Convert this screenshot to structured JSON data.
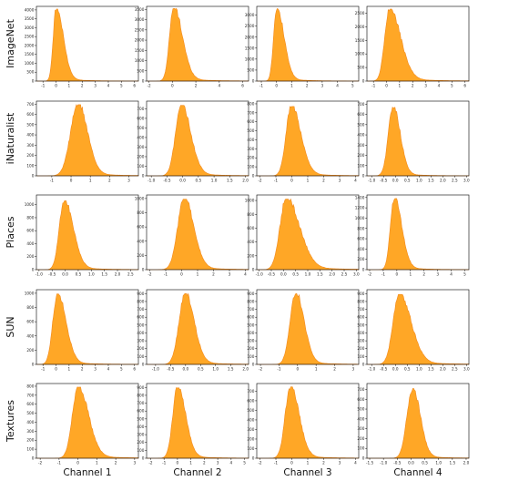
{
  "chart_data": {
    "type": "area",
    "rows": [
      "ImageNet",
      "iNaturalist",
      "Places",
      "SUN",
      "Textures"
    ],
    "columns": [
      "Channel 1",
      "Channel 2",
      "Channel 3",
      "Channel 4"
    ],
    "colors": {
      "fill": "#ffa726",
      "line": "#f28a1e"
    },
    "grid": false,
    "legend": "none",
    "panels": [
      [
        {
          "xlim": [
            -1.5,
            6.3
          ],
          "xticks": [
            -1,
            0,
            1,
            2,
            3,
            4,
            5,
            6
          ],
          "ylim": [
            0,
            4200
          ],
          "yticks": [
            0,
            500,
            1000,
            1500,
            2000,
            2500,
            3000,
            3500,
            4000
          ],
          "peak_x": 0.0,
          "peak": 4050,
          "left_sd": 0.22,
          "right_sd": 0.55
        },
        {
          "xlim": [
            -2.2,
            6.5
          ],
          "xticks": [
            -2,
            0,
            2,
            4,
            6
          ],
          "ylim": [
            0,
            3650
          ],
          "yticks": [
            0,
            500,
            1000,
            1500,
            2000,
            2500,
            3000,
            3500
          ],
          "peak_x": 0.1,
          "peak": 3550,
          "left_sd": 0.35,
          "right_sd": 0.75
        },
        {
          "xlim": [
            -1.3,
            5.4
          ],
          "xticks": [
            -1,
            0,
            1,
            2,
            3,
            4,
            5
          ],
          "ylim": [
            0,
            3400
          ],
          "yticks": [
            0,
            500,
            1000,
            1500,
            2000,
            2500,
            3000
          ],
          "peak_x": 0.0,
          "peak": 3300,
          "left_sd": 0.2,
          "right_sd": 0.48
        },
        {
          "xlim": [
            -1.5,
            6.3
          ],
          "xticks": [
            -1,
            0,
            1,
            2,
            3,
            4,
            5,
            6
          ],
          "ylim": [
            0,
            2750
          ],
          "yticks": [
            0,
            500,
            1000,
            1500,
            2000,
            2500
          ],
          "peak_x": 0.2,
          "peak": 2650,
          "left_sd": 0.35,
          "right_sd": 0.85
        }
      ],
      [
        {
          "xlim": [
            -1.8,
            3.5
          ],
          "xticks": [
            -1,
            0,
            1,
            2,
            3
          ],
          "ylim": [
            0,
            730
          ],
          "yticks": [
            0,
            100,
            200,
            300,
            400,
            500,
            600,
            700
          ],
          "peak_x": 0.35,
          "peak": 695,
          "left_sd": 0.38,
          "right_sd": 0.5
        },
        {
          "xlim": [
            -1.15,
            2.1
          ],
          "xticks": [
            -1.0,
            -0.5,
            0.0,
            0.5,
            1.0,
            1.5,
            2.0
          ],
          "ylim": [
            0,
            780
          ],
          "yticks": [
            0,
            100,
            200,
            300,
            400,
            500,
            600,
            700
          ],
          "peak_x": -0.05,
          "peak": 735,
          "left_sd": 0.18,
          "right_sd": 0.3
        },
        {
          "xlim": [
            -2.2,
            4.2
          ],
          "xticks": [
            -2,
            -1,
            0,
            1,
            2,
            3,
            4
          ],
          "ylim": [
            0,
            830
          ],
          "yticks": [
            0,
            100,
            200,
            300,
            400,
            500,
            600,
            700,
            800
          ],
          "peak_x": -0.05,
          "peak": 770,
          "left_sd": 0.32,
          "right_sd": 0.6
        },
        {
          "xlim": [
            -1.2,
            3.1
          ],
          "xticks": [
            -1.0,
            -0.5,
            0.0,
            0.5,
            1.0,
            1.5,
            2.0,
            2.5,
            3.0
          ],
          "ylim": [
            0,
            730
          ],
          "yticks": [
            0,
            100,
            200,
            300,
            400,
            500,
            600,
            700
          ],
          "peak_x": -0.1,
          "peak": 670,
          "left_sd": 0.2,
          "right_sd": 0.3
        }
      ],
      [
        {
          "xlim": [
            -1.1,
            2.8
          ],
          "xticks": [
            -1.0,
            -0.5,
            0.0,
            0.5,
            1.0,
            1.5,
            2.0,
            2.5
          ],
          "ylim": [
            0,
            1150
          ],
          "yticks": [
            0,
            200,
            400,
            600,
            800,
            1000
          ],
          "peak_x": -0.05,
          "peak": 1060,
          "left_sd": 0.18,
          "right_sd": 0.35
        },
        {
          "xlim": [
            -2.2,
            4.2
          ],
          "xticks": [
            -2,
            -1,
            0,
            1,
            2,
            3,
            4
          ],
          "ylim": [
            0,
            1050
          ],
          "yticks": [
            0,
            200,
            400,
            600,
            800,
            1000
          ],
          "peak_x": 0.15,
          "peak": 990,
          "left_sd": 0.4,
          "right_sd": 0.6
        },
        {
          "xlim": [
            -1.1,
            3.1
          ],
          "xticks": [
            -1.0,
            -0.5,
            0.0,
            0.5,
            1.0,
            1.5,
            2.0,
            2.5,
            3.0
          ],
          "ylim": [
            0,
            1080
          ],
          "yticks": [
            0,
            200,
            400,
            600,
            800,
            1000
          ],
          "peak_x": 0.1,
          "peak": 1020,
          "left_sd": 0.25,
          "right_sd": 0.55
        },
        {
          "xlim": [
            -2.2,
            5.3
          ],
          "xticks": [
            -2,
            -1,
            0,
            1,
            2,
            3,
            4,
            5
          ],
          "ylim": [
            0,
            1450
          ],
          "yticks": [
            0,
            200,
            400,
            600,
            800,
            1000,
            1200,
            1400
          ],
          "peak_x": -0.2,
          "peak": 1380,
          "left_sd": 0.28,
          "right_sd": 0.55
        }
      ],
      [
        {
          "xlim": [
            -1.5,
            6.3
          ],
          "xticks": [
            -1,
            0,
            1,
            2,
            3,
            4,
            5,
            6
          ],
          "ylim": [
            0,
            1050
          ],
          "yticks": [
            0,
            200,
            400,
            600,
            800,
            1000
          ],
          "peak_x": 0.1,
          "peak": 990,
          "left_sd": 0.35,
          "right_sd": 0.65
        },
        {
          "xlim": [
            -1.3,
            2.1
          ],
          "xticks": [
            -1.0,
            -0.5,
            0.0,
            0.5,
            1.0,
            1.5,
            2.0
          ],
          "ylim": [
            0,
            950
          ],
          "yticks": [
            0,
            100,
            200,
            300,
            400,
            500,
            600,
            700,
            800,
            900
          ],
          "peak_x": -0.02,
          "peak": 900,
          "left_sd": 0.2,
          "right_sd": 0.3
        },
        {
          "xlim": [
            -2.2,
            3.3
          ],
          "xticks": [
            -2,
            -1,
            0,
            1,
            2,
            3
          ],
          "ylim": [
            0,
            950
          ],
          "yticks": [
            0,
            100,
            200,
            300,
            400,
            500,
            600,
            700,
            800,
            900
          ],
          "peak_x": -0.1,
          "peak": 900,
          "left_sd": 0.3,
          "right_sd": 0.45
        },
        {
          "xlim": [
            -1.2,
            3.1
          ],
          "xticks": [
            -1.0,
            -0.5,
            0.0,
            0.5,
            1.0,
            1.5,
            2.0,
            2.5,
            3.0
          ],
          "ylim": [
            0,
            950
          ],
          "yticks": [
            0,
            100,
            200,
            300,
            400,
            500,
            600,
            700,
            800,
            900
          ],
          "peak_x": 0.15,
          "peak": 890,
          "left_sd": 0.25,
          "right_sd": 0.5
        }
      ],
      [
        {
          "xlim": [
            -2.2,
            3.2
          ],
          "xticks": [
            -2,
            -1,
            0,
            1,
            2,
            3
          ],
          "ylim": [
            0,
            830
          ],
          "yticks": [
            0,
            100,
            200,
            300,
            400,
            500,
            600,
            700,
            800
          ],
          "peak_x": 0.0,
          "peak": 790,
          "left_sd": 0.3,
          "right_sd": 0.55
        },
        {
          "xlim": [
            -2.3,
            5.3
          ],
          "xticks": [
            -2,
            -1,
            0,
            1,
            2,
            3,
            4,
            5
          ],
          "ylim": [
            0,
            950
          ],
          "yticks": [
            0,
            100,
            200,
            300,
            400,
            500,
            600,
            700,
            800,
            900
          ],
          "peak_x": 0.0,
          "peak": 900,
          "left_sd": 0.35,
          "right_sd": 0.6
        },
        {
          "xlim": [
            -2.2,
            4.2
          ],
          "xticks": [
            -2,
            -1,
            0,
            1,
            2,
            3,
            4
          ],
          "ylim": [
            0,
            780
          ],
          "yticks": [
            0,
            100,
            200,
            300,
            400,
            500,
            600,
            700
          ],
          "peak_x": -0.1,
          "peak": 745,
          "left_sd": 0.32,
          "right_sd": 0.55
        },
        {
          "xlim": [
            -1.6,
            2.1
          ],
          "xticks": [
            -1.5,
            -1.0,
            -0.5,
            0.0,
            0.5,
            1.0,
            1.5,
            2.0
          ],
          "ylim": [
            0,
            760
          ],
          "yticks": [
            0,
            100,
            200,
            300,
            400,
            500,
            600,
            700
          ],
          "peak_x": 0.05,
          "peak": 710,
          "left_sd": 0.2,
          "right_sd": 0.28
        }
      ]
    ]
  }
}
